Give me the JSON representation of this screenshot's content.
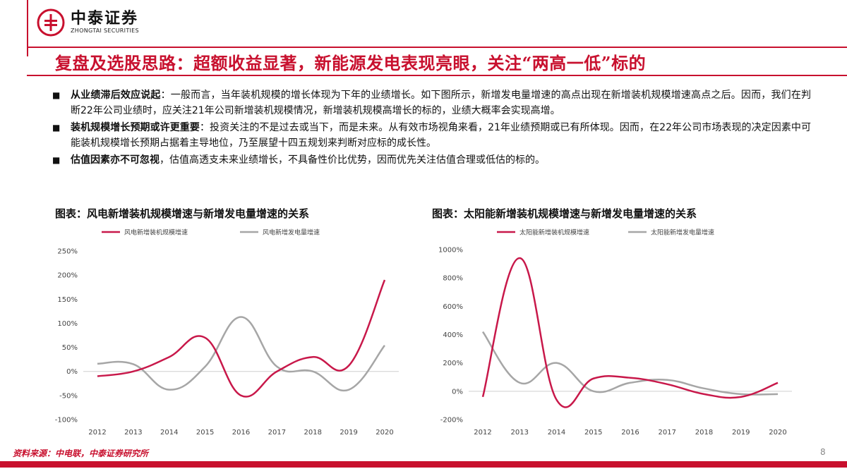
{
  "header": {
    "logo_cn": "中泰证券",
    "logo_en": "ZHONGTAI SECURITIES",
    "brand_color": "#c8102e"
  },
  "title": "复盘及选股思路：超额收益显著，新能源发电表现亮眼，关注“两高一低”标的",
  "bullets": [
    {
      "marker": "■",
      "lead": "从业绩滞后效应说起",
      "text": "：一般而言，当年装机规模的增长体现为下年的业绩增长。如下图所示，新增发电量增速的高点出现在新增装机规模增速高点之后。因而，我们在判断22年公司业绩时，应关注21年公司新增装机规模情况，新增装机规模高增长的标的，业绩大概率会实现高增。"
    },
    {
      "marker": "■",
      "lead": "装机规模增长预期或许更重要",
      "text": "：投资关注的不是过去或当下，而是未来。从有效市场视角来看，21年业绩预期或已有所体现。因而，在22年公司市场表现的决定因素中可能装机规模增长预期占据着主导地位，乃至展望十四五规划来判断对应标的成长性。"
    },
    {
      "marker": "■",
      "lead": "估值因素亦不可忽视",
      "text": "，估值高透支未来业绩增长，不具备性价比优势，因而优先关注估值合理或低估的标的。"
    }
  ],
  "chart_data": [
    {
      "type": "line",
      "title": "图表：风电新增装机规模增速与新增发电量增速的关系",
      "categories": [
        "2012",
        "2013",
        "2014",
        "2015",
        "2016",
        "2017",
        "2018",
        "2019",
        "2020"
      ],
      "series": [
        {
          "name": "风电新增装机规模增速",
          "color": "#c8184a",
          "values": [
            -10,
            0,
            30,
            70,
            -50,
            0,
            30,
            12,
            190
          ]
        },
        {
          "name": "风电新增发电量增速",
          "color": "#a6a6a6",
          "values": [
            16,
            15,
            -38,
            10,
            113,
            10,
            0,
            -38,
            54
          ]
        }
      ],
      "yticks": [
        "250%",
        "200%",
        "150%",
        "100%",
        "50%",
        "0%",
        "-50%",
        "-100%"
      ],
      "ylim": [
        -100,
        250
      ],
      "ystep": 50,
      "legend": "top",
      "grid": false
    },
    {
      "type": "line",
      "title": "图表：太阳能新增装机规模增速与新增发电量增速的关系",
      "categories": [
        "2012",
        "2013",
        "2014",
        "2015",
        "2016",
        "2017",
        "2018",
        "2019",
        "2020"
      ],
      "series": [
        {
          "name": "太阳能新增装机规模增速",
          "color": "#c8184a",
          "values": [
            -40,
            940,
            -60,
            90,
            95,
            50,
            -20,
            -40,
            60
          ]
        },
        {
          "name": "太阳能新增发电量增速",
          "color": "#a6a6a6",
          "values": [
            420,
            60,
            200,
            0,
            60,
            80,
            20,
            -20,
            -20
          ]
        }
      ],
      "yticks": [
        "1000%",
        "800%",
        "600%",
        "400%",
        "200%",
        "0%",
        "-200%"
      ],
      "ylim": [
        -200,
        1000
      ],
      "ystep": 200,
      "legend": "top",
      "grid": false
    }
  ],
  "footer": {
    "source": "资料来源：中电联，中泰证券研究所",
    "page": "8"
  }
}
